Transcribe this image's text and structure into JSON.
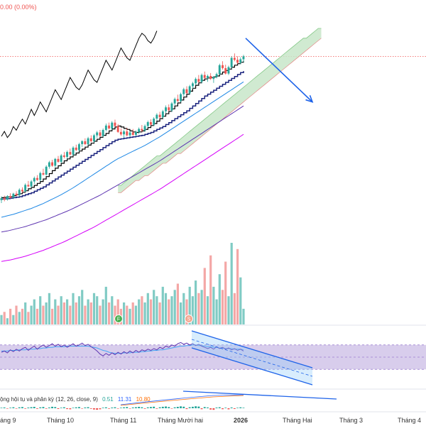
{
  "header": {
    "change_text": "0.00 (0.00%)"
  },
  "macd": {
    "label": "ộng hội tụ và phân kỳ (12, 26, close, 9)",
    "v1": "0.51",
    "v2": "11.31",
    "v3": "10.80",
    "colors": {
      "v1": "#26a69a",
      "v2": "#2962ff",
      "v3": "#ff6d00"
    }
  },
  "badges": [
    {
      "text": "F",
      "color": "#4caf50"
    },
    {
      "text": "S",
      "color": "#f3a58e"
    }
  ],
  "xaxis": [
    {
      "label": "áng 9",
      "bold": false
    },
    {
      "label": "Tháng 10",
      "bold": false
    },
    {
      "label": "Tháng 11",
      "bold": false
    },
    {
      "label": "Tháng Mười hai",
      "bold": false
    },
    {
      "label": "2026",
      "bold": true
    },
    {
      "label": "Tháng Hai",
      "bold": false
    },
    {
      "label": "Tháng 3",
      "bold": false
    },
    {
      "label": "Tháng 4",
      "bold": false
    }
  ],
  "chart_data": {
    "type": "candlestick",
    "title": "",
    "colors": {
      "up": "#26a69a",
      "down": "#ef5350",
      "cloud": "#c8e6c9",
      "rsi_band": "#d1c4e9",
      "annotation": "#1e63e9"
    },
    "candles": [
      [
        100,
        101.5,
        98.8,
        100.8
      ],
      [
        100.8,
        101.8,
        99.5,
        100.2
      ],
      [
        100.2,
        102.0,
        99.8,
        101.6
      ],
      [
        101.6,
        102.8,
        100.6,
        101.0
      ],
      [
        101.0,
        103.0,
        100.4,
        102.6
      ],
      [
        102.6,
        103.6,
        101.8,
        102.0
      ],
      [
        102.0,
        104.8,
        101.4,
        104.2
      ],
      [
        104.2,
        105.2,
        103.0,
        103.6
      ],
      [
        103.6,
        106.8,
        103.2,
        106.2
      ],
      [
        106.2,
        107.8,
        105.2,
        105.6
      ],
      [
        105.6,
        108.2,
        105.0,
        107.6
      ],
      [
        107.6,
        109.6,
        106.6,
        109.0
      ],
      [
        109.0,
        110.2,
        107.8,
        108.2
      ],
      [
        108.2,
        111.6,
        107.6,
        111.0
      ],
      [
        111.0,
        112.8,
        110.0,
        110.4
      ],
      [
        110.4,
        114.2,
        110.0,
        113.6
      ],
      [
        113.6,
        116.0,
        112.8,
        115.4
      ],
      [
        115.4,
        116.4,
        113.6,
        114.0
      ],
      [
        114.0,
        117.2,
        113.4,
        116.8
      ],
      [
        116.8,
        118.0,
        115.2,
        115.6
      ],
      [
        115.6,
        118.8,
        115.0,
        118.2
      ],
      [
        118.2,
        119.6,
        117.0,
        117.6
      ],
      [
        117.6,
        120.2,
        116.8,
        119.6
      ],
      [
        119.6,
        121.0,
        118.2,
        118.6
      ],
      [
        118.6,
        122.0,
        118.0,
        121.4
      ],
      [
        121.4,
        122.6,
        120.0,
        120.4
      ],
      [
        120.4,
        123.4,
        119.8,
        122.8
      ],
      [
        122.8,
        124.4,
        121.6,
        124.0
      ],
      [
        124.0,
        125.2,
        122.4,
        122.8
      ],
      [
        122.8,
        125.8,
        122.2,
        125.2
      ],
      [
        125.2,
        126.4,
        123.6,
        124.0
      ],
      [
        124.0,
        127.0,
        123.4,
        126.4
      ],
      [
        126.4,
        128.2,
        125.4,
        127.6
      ],
      [
        127.6,
        128.6,
        125.8,
        126.2
      ],
      [
        126.2,
        129.2,
        125.6,
        128.6
      ],
      [
        128.6,
        131.2,
        128.0,
        130.4
      ],
      [
        130.4,
        131.6,
        128.8,
        129.2
      ],
      [
        129.2,
        132.2,
        128.6,
        131.6
      ],
      [
        131.6,
        132.8,
        129.8,
        130.2
      ],
      [
        130.2,
        131.0,
        127.4,
        127.8
      ],
      [
        127.8,
        129.2,
        126.2,
        126.8
      ],
      [
        126.8,
        128.6,
        125.4,
        128.0
      ],
      [
        128.0,
        129.4,
        126.0,
        126.4
      ],
      [
        126.4,
        128.2,
        125.8,
        127.6
      ],
      [
        127.6,
        129.0,
        126.2,
        126.6
      ],
      [
        126.6,
        128.4,
        126.0,
        127.8
      ],
      [
        127.8,
        129.6,
        127.0,
        129.0
      ],
      [
        129.0,
        130.6,
        127.8,
        128.4
      ],
      [
        128.4,
        130.8,
        127.8,
        130.2
      ],
      [
        130.2,
        132.4,
        129.6,
        131.8
      ],
      [
        131.8,
        133.0,
        130.4,
        130.8
      ],
      [
        130.8,
        133.8,
        130.2,
        133.2
      ],
      [
        133.2,
        135.4,
        132.4,
        134.8
      ],
      [
        134.8,
        136.0,
        133.2,
        133.8
      ],
      [
        133.8,
        136.8,
        133.2,
        136.2
      ],
      [
        136.2,
        138.6,
        135.4,
        137.8
      ],
      [
        137.8,
        139.0,
        136.2,
        136.6
      ],
      [
        136.6,
        140.0,
        136.0,
        139.4
      ],
      [
        139.4,
        141.8,
        138.8,
        141.2
      ],
      [
        141.2,
        143.0,
        140.0,
        140.4
      ],
      [
        140.4,
        143.8,
        139.8,
        143.2
      ],
      [
        143.2,
        145.8,
        142.4,
        145.2
      ],
      [
        145.2,
        146.4,
        143.2,
        143.6
      ],
      [
        143.6,
        147.0,
        143.0,
        146.4
      ],
      [
        146.4,
        148.2,
        145.4,
        147.6
      ],
      [
        147.6,
        150.0,
        146.8,
        149.4
      ],
      [
        149.4,
        151.0,
        147.8,
        148.2
      ],
      [
        148.2,
        151.6,
        147.6,
        151.0
      ],
      [
        151.0,
        152.4,
        149.4,
        149.8
      ],
      [
        149.8,
        151.2,
        148.2,
        150.6
      ],
      [
        150.6,
        151.8,
        149.0,
        149.4
      ],
      [
        149.4,
        150.6,
        147.8,
        150.2
      ],
      [
        150.2,
        152.0,
        149.6,
        151.4
      ],
      [
        151.4,
        155.6,
        151.0,
        155.0
      ],
      [
        155.0,
        156.6,
        153.2,
        153.8
      ],
      [
        153.8,
        155.2,
        151.2,
        151.6
      ],
      [
        151.6,
        154.8,
        151.0,
        154.2
      ],
      [
        154.2,
        158.6,
        153.6,
        158.0
      ],
      [
        158.0,
        159.8,
        156.6,
        157.2
      ],
      [
        157.2,
        158.6,
        155.4,
        156.0
      ],
      [
        156.0,
        158.2,
        155.4,
        157.4
      ],
      [
        157.4,
        159.2,
        156.2,
        158.6
      ]
    ],
    "tenkan": [
      101.0,
      101.1,
      101.3,
      101.4,
      101.8,
      102.2,
      102.6,
      103.2,
      103.8,
      104.6,
      105.2,
      106.0,
      106.8,
      107.6,
      108.6,
      109.6,
      110.8,
      112.0,
      113.0,
      114.0,
      115.0,
      116.0,
      116.8,
      117.6,
      118.4,
      119.2,
      120.0,
      120.8,
      121.6,
      122.4,
      123.2,
      124.0,
      124.8,
      125.6,
      126.4,
      127.2,
      128.2,
      129.0,
      129.8,
      130.2,
      129.8,
      129.2,
      128.8,
      128.2,
      127.8,
      127.6,
      127.8,
      128.2,
      128.8,
      129.6,
      130.4,
      131.2,
      132.2,
      133.2,
      134.2,
      135.2,
      136.2,
      137.2,
      138.4,
      139.6,
      140.8,
      142.0,
      143.2,
      144.4,
      145.6,
      146.8,
      147.8,
      148.8,
      149.4,
      149.8,
      150.0,
      150.2,
      150.6,
      151.4,
      152.2,
      152.8,
      153.4,
      154.2,
      155.0,
      155.6,
      156.2,
      156.8
    ],
    "kijun": [
      100.4,
      100.5,
      100.6,
      100.8,
      101.0,
      101.2,
      101.4,
      101.8,
      102.2,
      102.6,
      103.0,
      103.6,
      104.2,
      104.8,
      105.4,
      106.2,
      107.0,
      107.8,
      108.6,
      109.4,
      110.2,
      111.0,
      111.8,
      112.6,
      113.4,
      114.2,
      115.0,
      115.8,
      116.6,
      117.4,
      118.2,
      119.0,
      119.8,
      120.6,
      121.4,
      122.2,
      123.0,
      123.8,
      124.4,
      124.8,
      125.0,
      125.2,
      125.4,
      125.6,
      125.8,
      126.0,
      126.2,
      126.4,
      126.8,
      127.2,
      127.6,
      128.2,
      128.8,
      129.4,
      130.0,
      130.8,
      131.6,
      132.4,
      133.2,
      134.0,
      134.8,
      135.6,
      136.4,
      137.4,
      138.4,
      139.4,
      140.4,
      141.4,
      142.4,
      143.2,
      144.0,
      144.8,
      145.6,
      146.4,
      147.2,
      148.0,
      148.8,
      149.6,
      150.4,
      151.2,
      152.0,
      152.6
    ],
    "ma_blue": [
      93.0,
      93.3,
      93.6,
      93.9,
      94.2,
      94.6,
      95.0,
      95.4,
      95.8,
      96.2,
      96.6,
      97.1,
      97.6,
      98.1,
      98.6,
      99.2,
      99.8,
      100.4,
      101.0,
      101.6,
      102.2,
      102.9,
      103.6,
      104.3,
      105.0,
      105.8,
      106.6,
      107.4,
      108.2,
      109.0,
      109.8,
      110.6,
      111.4,
      112.2,
      113.0,
      113.8,
      114.6,
      115.4,
      116.2,
      116.9,
      117.5,
      118.1,
      118.7,
      119.3,
      119.9,
      120.5,
      121.1,
      121.7,
      122.3,
      123.0,
      123.7,
      124.4,
      125.1,
      125.8,
      126.6,
      127.4,
      128.2,
      129.0,
      129.8,
      130.6,
      131.4,
      132.2,
      133.0,
      133.8,
      134.6,
      135.4,
      136.2,
      137.0,
      137.8,
      138.6,
      139.4,
      140.2,
      141.0,
      141.8,
      142.6,
      143.4,
      144.2,
      145.0,
      145.8,
      146.6,
      147.4,
      148.2
    ],
    "ma_purple": [
      87.0,
      87.2,
      87.4,
      87.7,
      88.0,
      88.3,
      88.6,
      88.9,
      89.2,
      89.6,
      90.0,
      90.4,
      90.8,
      91.2,
      91.6,
      92.0,
      92.5,
      93.0,
      93.5,
      94.0,
      94.5,
      95.0,
      95.5,
      96.0,
      96.6,
      97.2,
      97.8,
      98.4,
      99.0,
      99.6,
      100.2,
      100.8,
      101.4,
      102.0,
      102.7,
      103.4,
      104.1,
      104.8,
      105.5,
      106.2,
      106.9,
      107.6,
      108.3,
      109.0,
      109.7,
      110.4,
      111.1,
      111.8,
      112.5,
      113.2,
      113.9,
      114.6,
      115.3,
      116.0,
      116.8,
      117.6,
      118.4,
      119.2,
      120.0,
      120.8,
      121.6,
      122.4,
      123.2,
      124.0,
      124.8,
      125.6,
      126.4,
      127.2,
      128.0,
      128.8,
      129.6,
      130.4,
      131.2,
      132.0,
      132.8,
      133.6,
      134.4,
      135.2,
      136.0,
      136.8,
      137.6,
      138.4
    ],
    "ma_magenta": [
      75.0,
      75.2,
      75.4,
      75.6,
      75.9,
      76.2,
      76.5,
      76.8,
      77.1,
      77.5,
      77.9,
      78.3,
      78.7,
      79.1,
      79.5,
      80.0,
      80.5,
      81.0,
      81.5,
      82.0,
      82.5,
      83.0,
      83.6,
      84.2,
      84.8,
      85.4,
      86.0,
      86.6,
      87.2,
      87.8,
      88.4,
      89.0,
      89.7,
      90.4,
      91.1,
      91.8,
      92.5,
      93.2,
      93.9,
      94.6,
      95.3,
      96.0,
      96.7,
      97.4,
      98.1,
      98.8,
      99.5,
      100.2,
      100.9,
      101.6,
      102.3,
      103.0,
      103.7,
      104.4,
      105.2,
      106.0,
      106.8,
      107.6,
      108.4,
      109.2,
      110.0,
      110.8,
      111.6,
      112.4,
      113.2,
      114.0,
      114.8,
      115.6,
      116.4,
      117.2,
      118.0,
      118.8,
      119.6,
      120.4,
      121.2,
      122.0,
      122.8,
      123.6,
      124.4,
      125.2,
      126.0,
      126.8
    ],
    "lagging_span": [
      126.0,
      128.0,
      125.5,
      127.0,
      130.0,
      128.5,
      131.0,
      133.0,
      131.0,
      134.0,
      137.0,
      134.5,
      137.0,
      140.0,
      138.0,
      136.0,
      139.0,
      142.0,
      145.0,
      143.0,
      141.0,
      144.0,
      147.0,
      150.0,
      148.0,
      146.0,
      145.0,
      147.0,
      150.0,
      153.0,
      151.0,
      149.0,
      148.0,
      151.0,
      154.0,
      157.0,
      155.0,
      153.0,
      156.0,
      159.0,
      162.0,
      160.0,
      158.0,
      157.0,
      160.0,
      163.0,
      166.0,
      168.0,
      167.0,
      165.0,
      164.0,
      166.0,
      169.0
    ],
    "cloud": {
      "a": [
        106,
        106,
        107,
        108,
        109,
        110,
        111,
        112,
        113,
        114,
        115,
        116,
        117,
        118,
        118,
        119,
        120,
        121,
        122,
        123,
        124,
        125,
        126,
        127,
        128,
        129,
        130,
        131,
        132,
        133,
        134,
        135,
        136,
        137,
        138,
        139,
        140,
        141,
        142,
        143,
        144,
        145,
        146,
        147,
        148,
        149,
        150,
        151,
        152,
        153,
        154,
        155,
        156,
        157,
        158,
        159,
        160,
        161,
        162,
        163,
        164,
        165,
        166,
        166,
        167,
        168,
        169,
        170,
        170
      ],
      "b": [
        103,
        103,
        104,
        105,
        106,
        107,
        108,
        108,
        109,
        110,
        110,
        111,
        112,
        113,
        114,
        115,
        115,
        116,
        117,
        118,
        119,
        119,
        120,
        121,
        122,
        123,
        124,
        125,
        126,
        127,
        128,
        129,
        130,
        131,
        132,
        133,
        134,
        135,
        136,
        137,
        138,
        139,
        140,
        141,
        142,
        143,
        144,
        145,
        146,
        147,
        148,
        149,
        150,
        151,
        152,
        153,
        154,
        155,
        156,
        157,
        158,
        159,
        160,
        161,
        162,
        163,
        164,
        165,
        166
      ]
    },
    "forecast": {
      "from": 166.0,
      "to": 140.0
    },
    "volume": [
      3,
      4,
      2,
      5,
      3,
      6,
      4,
      5,
      7,
      4,
      6,
      8,
      5,
      9,
      6,
      7,
      10,
      5,
      8,
      6,
      9,
      7,
      8,
      6,
      10,
      7,
      9,
      11,
      6,
      8,
      7,
      10,
      9,
      6,
      8,
      12,
      7,
      9,
      6,
      8,
      5,
      7,
      6,
      5,
      7,
      6,
      8,
      9,
      7,
      10,
      8,
      11,
      9,
      7,
      12,
      10,
      8,
      9,
      11,
      13,
      7,
      10,
      8,
      12,
      9,
      14,
      10,
      11,
      18,
      9,
      22,
      12,
      8,
      16,
      11,
      20,
      9,
      26,
      10,
      24,
      15,
      5
    ],
    "rsi": [
      58,
      60,
      57,
      62,
      59,
      63,
      60,
      64,
      66,
      61,
      65,
      68,
      63,
      67,
      70,
      66,
      69,
      72,
      68,
      71,
      67,
      70,
      66,
      69,
      72,
      68,
      70,
      73,
      69,
      71,
      67,
      64,
      60,
      55,
      52,
      56,
      53,
      57,
      54,
      58,
      55,
      59,
      56,
      60,
      57,
      61,
      58,
      62,
      60,
      63,
      61,
      64,
      62,
      66,
      64,
      68,
      66,
      70,
      68,
      72,
      74,
      71,
      73,
      70,
      72,
      69,
      71,
      68,
      66,
      64,
      66,
      63,
      67,
      64,
      66,
      63,
      65,
      62,
      64,
      61,
      63,
      60
    ],
    "rsi_ma": [
      60,
      60,
      60,
      61,
      61,
      61,
      62,
      62,
      62,
      63,
      63,
      63,
      64,
      64,
      65,
      65,
      66,
      66,
      67,
      67,
      67,
      67,
      68,
      68,
      68,
      68,
      68,
      68,
      68,
      68,
      67,
      66,
      65,
      63,
      61,
      60,
      58,
      57,
      56,
      56,
      56,
      57,
      57,
      57,
      58,
      58,
      58,
      59,
      59,
      60,
      60,
      61,
      61,
      62,
      62,
      63,
      64,
      65,
      66,
      67,
      68,
      68,
      69,
      69,
      70,
      70,
      69,
      69,
      68,
      67,
      67,
      66,
      66,
      65,
      65,
      64,
      64,
      64,
      63,
      63,
      63,
      62
    ],
    "macd_hist": [
      0.5,
      0.8,
      -0.3,
      0.6,
      1.0,
      -0.4,
      0.9,
      1.2,
      -0.5,
      0.7,
      1.1,
      1.4,
      -0.6,
      0.9,
      1.3,
      -0.5,
      0.8,
      1.5,
      1.2,
      -0.7,
      0.6,
      1.0,
      -0.8,
      -1.0,
      0.5,
      0.9,
      1.2,
      -0.4,
      0.8,
      1.1,
      -0.6,
      -1.2,
      -1.5,
      -1.0,
      0.6,
      0.9,
      -0.5,
      0.7,
      1.0,
      -0.3,
      0.6,
      0.9,
      1.2,
      -0.4,
      0.8,
      1.1,
      1.4,
      1.0,
      -0.6,
      0.9,
      1.3,
      1.6,
      -0.5,
      1.0,
      1.5,
      1.8,
      1.2,
      -0.4,
      0.9,
      1.4,
      1.9,
      1.6,
      -0.8,
      1.1,
      1.5,
      2.0,
      1.7,
      -0.9,
      1.2,
      0.8,
      -1.3,
      -1.6,
      0.7,
      1.0,
      -0.9,
      0.6,
      -1.1,
      0.8,
      -0.7,
      0.5,
      0.9,
      0.51
    ]
  }
}
